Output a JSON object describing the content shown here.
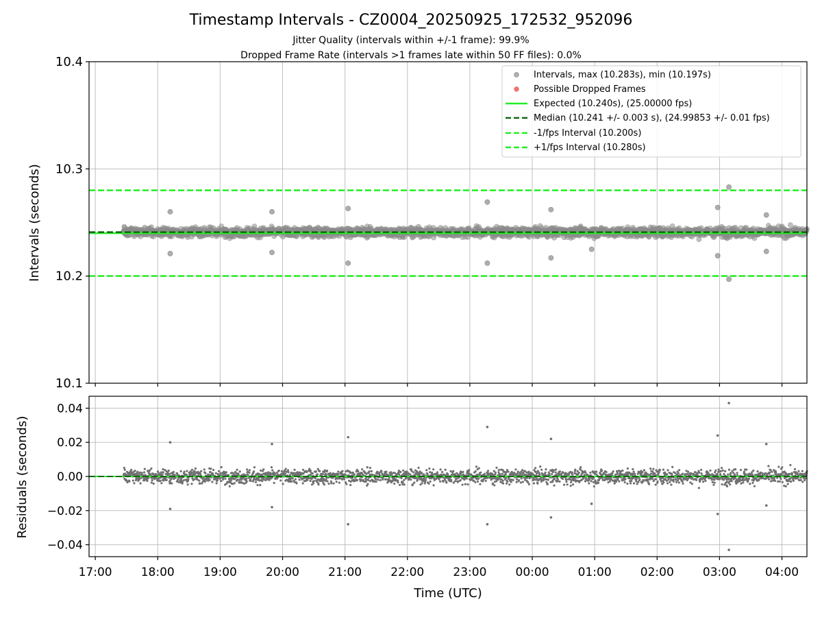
{
  "chart_data": [
    {
      "type": "scatter",
      "title": "Timestamp Intervals - CZ0004_20250925_172532_952096",
      "subtitle_lines": [
        "Jitter Quality (intervals within +/-1 frame): 99.9%",
        "Dropped Frame Rate (intervals >1 frames late within 50 FF files): 0.0%"
      ],
      "xlabel": "",
      "ylabel": "Intervals (seconds)",
      "ylim": [
        10.1,
        10.4
      ],
      "yticks": [
        "10.1",
        "10.2",
        "10.3",
        "10.4"
      ],
      "grid": true,
      "legend_position": "top-right",
      "series": [
        {
          "name": "Intervals, max (10.283s), min (10.197s)",
          "kind": "points",
          "color": "#8c8c8c",
          "center": 10.241,
          "spread": 0.003
        },
        {
          "name": "Possible Dropped Frames",
          "kind": "points",
          "color": "#ee6666",
          "count": 0
        }
      ],
      "reference_lines": [
        {
          "name": "Expected (10.240s), (25.00000 fps)",
          "y": 10.24,
          "color": "#22ee22",
          "style": "solid"
        },
        {
          "name": "Median (10.241 +/- 0.003 s), (24.99853 +/- 0.01 fps)",
          "y": 10.241,
          "color": "#116611",
          "style": "dashed"
        },
        {
          "name": "-1/fps Interval (10.200s)",
          "y": 10.2,
          "color": "#22ee22",
          "style": "dashed"
        },
        {
          "name": "+1/fps Interval (10.280s)",
          "y": 10.28,
          "color": "#22ee22",
          "style": "dashed"
        }
      ],
      "highlighted_points": [
        {
          "x": 27.15,
          "y": 10.283
        },
        {
          "x": 27.15,
          "y": 10.197
        },
        {
          "x": 23.28,
          "y": 10.269
        },
        {
          "x": 23.28,
          "y": 10.212
        },
        {
          "x": 21.05,
          "y": 10.263
        },
        {
          "x": 21.05,
          "y": 10.212
        },
        {
          "x": 26.97,
          "y": 10.264
        },
        {
          "x": 26.97,
          "y": 10.219
        },
        {
          "x": 24.3,
          "y": 10.262
        },
        {
          "x": 24.3,
          "y": 10.217
        },
        {
          "x": 18.2,
          "y": 10.26
        },
        {
          "x": 18.2,
          "y": 10.221
        },
        {
          "x": 19.83,
          "y": 10.26
        },
        {
          "x": 19.83,
          "y": 10.222
        },
        {
          "x": 24.95,
          "y": 10.225
        },
        {
          "x": 27.75,
          "y": 10.257
        },
        {
          "x": 27.75,
          "y": 10.223
        }
      ]
    },
    {
      "type": "scatter",
      "title": "",
      "xlabel": "Time (UTC)",
      "ylabel": "Residuals (seconds)",
      "ylim": [
        -0.047,
        0.047
      ],
      "yticks": [
        "−0.04",
        "−0.02",
        "0.00",
        "0.02",
        "0.04"
      ],
      "ytick_values": [
        -0.04,
        -0.02,
        0.0,
        0.02,
        0.04
      ],
      "xlim": [
        16.9,
        28.4
      ],
      "xticks": [
        "17:00",
        "18:00",
        "19:00",
        "20:00",
        "21:00",
        "22:00",
        "23:00",
        "00:00",
        "01:00",
        "02:00",
        "03:00",
        "04:00"
      ],
      "xtick_values": [
        17,
        18,
        19,
        20,
        21,
        22,
        23,
        24,
        25,
        26,
        27,
        28
      ],
      "data_x_range": [
        17.45,
        28.4
      ],
      "grid": true,
      "series": [
        {
          "name": "Residuals",
          "kind": "points",
          "color": "#707070",
          "center": 0.0,
          "spread": 0.003
        }
      ],
      "reference_lines": [
        {
          "name": "Zero (expected)",
          "y": 0.0,
          "color": "#22ee22",
          "style": "solid"
        },
        {
          "name": "Median residual",
          "y": 0.0,
          "color": "#116611",
          "style": "dashed"
        }
      ],
      "highlighted_points": [
        {
          "x": 27.15,
          "y": 0.043
        },
        {
          "x": 27.15,
          "y": -0.043
        },
        {
          "x": 23.28,
          "y": 0.029
        },
        {
          "x": 23.28,
          "y": -0.028
        },
        {
          "x": 21.05,
          "y": 0.023
        },
        {
          "x": 21.05,
          "y": -0.028
        },
        {
          "x": 26.97,
          "y": 0.024
        },
        {
          "x": 26.97,
          "y": -0.022
        },
        {
          "x": 24.3,
          "y": 0.022
        },
        {
          "x": 24.3,
          "y": -0.024
        },
        {
          "x": 18.2,
          "y": 0.02
        },
        {
          "x": 18.2,
          "y": -0.019
        },
        {
          "x": 19.83,
          "y": 0.019
        },
        {
          "x": 19.83,
          "y": -0.018
        },
        {
          "x": 24.95,
          "y": -0.016
        },
        {
          "x": 27.75,
          "y": 0.019
        },
        {
          "x": 27.75,
          "y": -0.017
        }
      ]
    }
  ]
}
